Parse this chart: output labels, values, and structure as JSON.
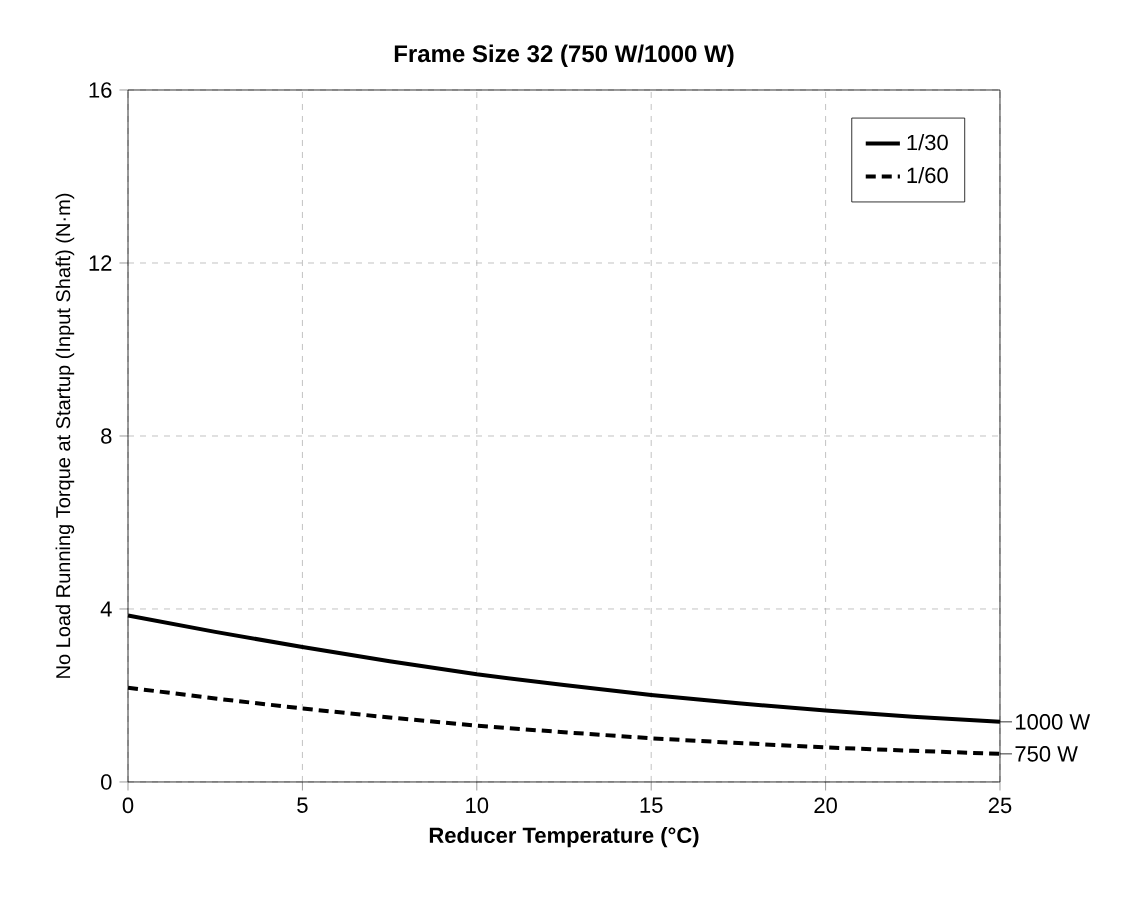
{
  "chart_data": {
    "type": "line",
    "title": "Frame Size 32 (750 W/1000 W)",
    "xlabel": "Reducer Temperature (°C)",
    "ylabel": "No Load Running Torque at Startup (Input Shaft) (N·m)",
    "x": [
      0,
      2.5,
      5,
      7.5,
      10,
      12.5,
      15,
      17.5,
      20,
      22.5,
      25
    ],
    "series": [
      {
        "name": "1/30",
        "color": "#000000",
        "line_style": "solid",
        "values": [
          3.85,
          3.47,
          3.12,
          2.79,
          2.49,
          2.24,
          2.01,
          1.82,
          1.65,
          1.51,
          1.39
        ]
      },
      {
        "name": "1/60",
        "color": "#000000",
        "line_style": "dashed",
        "values": [
          2.18,
          1.93,
          1.7,
          1.49,
          1.3,
          1.15,
          1.01,
          0.9,
          0.8,
          0.72,
          0.65
        ]
      }
    ],
    "xlim": [
      0,
      25
    ],
    "ylim": [
      0,
      16
    ],
    "xticks": [
      0,
      5,
      10,
      15,
      20,
      25
    ],
    "yticks": [
      0,
      4,
      8,
      12,
      16
    ],
    "grid": true,
    "legend": "top right",
    "marker": "none",
    "annotations": [
      {
        "text": "1000 W",
        "x": 25,
        "y": 1.39
      },
      {
        "text": "750 W",
        "x": 25,
        "y": 0.65
      }
    ]
  }
}
